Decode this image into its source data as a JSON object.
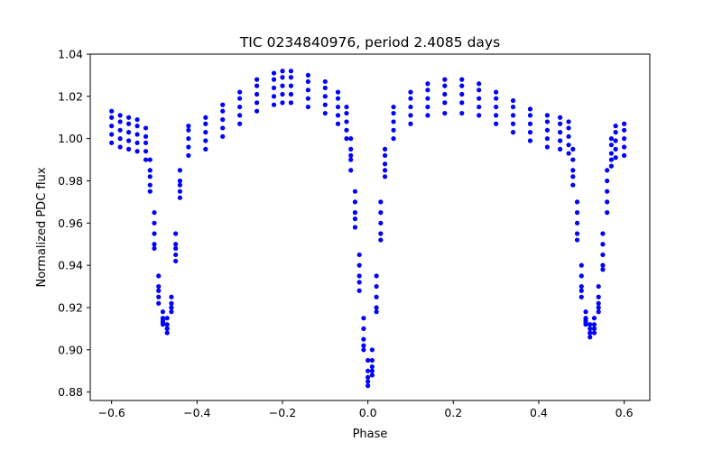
{
  "chart_data": {
    "type": "scatter",
    "title": "TIC 0234840976, period 2.4085 days",
    "xlabel": "Phase",
    "ylabel": "Normalized PDC flux",
    "xlim": [
      -0.65,
      0.66
    ],
    "ylim": [
      0.876,
      1.04
    ],
    "xticks": [
      -0.6,
      -0.4,
      -0.2,
      0.0,
      0.2,
      0.4,
      0.6
    ],
    "xtick_labels": [
      "−0.6",
      "−0.4",
      "−0.2",
      "0.0",
      "0.2",
      "0.4",
      "0.6"
    ],
    "yticks": [
      0.88,
      0.9,
      0.92,
      0.94,
      0.96,
      0.98,
      1.0,
      1.02,
      1.04
    ],
    "ytick_labels": [
      "0.88",
      "0.90",
      "0.92",
      "0.94",
      "0.96",
      "0.98",
      "1.00",
      "1.02",
      "1.04"
    ],
    "grid": false,
    "marker_color": "#0000ff",
    "series": [
      {
        "points": [
          [
            -0.6,
            1.013
          ],
          [
            -0.58,
            1.011
          ],
          [
            -0.56,
            1.01
          ],
          [
            -0.54,
            1.009
          ],
          [
            -0.52,
            1.005
          ],
          [
            -0.51,
            0.99
          ],
          [
            -0.5,
            0.965
          ],
          [
            -0.49,
            0.935
          ],
          [
            -0.48,
            0.918
          ],
          [
            -0.47,
            0.915
          ],
          [
            -0.46,
            0.925
          ],
          [
            -0.45,
            0.955
          ],
          [
            -0.44,
            0.985
          ],
          [
            -0.42,
            1.006
          ],
          [
            -0.38,
            1.01
          ],
          [
            -0.34,
            1.016
          ],
          [
            -0.3,
            1.022
          ],
          [
            -0.26,
            1.028
          ],
          [
            -0.22,
            1.031
          ],
          [
            -0.2,
            1.032
          ],
          [
            -0.18,
            1.032
          ],
          [
            -0.14,
            1.03
          ],
          [
            -0.1,
            1.027
          ],
          [
            -0.07,
            1.022
          ],
          [
            -0.05,
            1.015
          ],
          [
            -0.04,
            1.0
          ],
          [
            -0.03,
            0.975
          ],
          [
            -0.02,
            0.945
          ],
          [
            -0.01,
            0.915
          ],
          [
            0.0,
            0.895
          ],
          [
            0.01,
            0.9
          ],
          [
            0.02,
            0.935
          ],
          [
            0.03,
            0.97
          ],
          [
            0.04,
            0.995
          ],
          [
            0.06,
            1.015
          ],
          [
            0.1,
            1.022
          ],
          [
            0.14,
            1.026
          ],
          [
            0.18,
            1.028
          ],
          [
            0.22,
            1.028
          ],
          [
            0.26,
            1.026
          ],
          [
            0.3,
            1.022
          ],
          [
            0.34,
            1.018
          ],
          [
            0.38,
            1.014
          ],
          [
            0.42,
            1.011
          ],
          [
            0.45,
            1.01
          ],
          [
            0.47,
            1.008
          ],
          [
            0.48,
            0.995
          ],
          [
            0.49,
            0.97
          ],
          [
            0.5,
            0.94
          ],
          [
            0.51,
            0.918
          ],
          [
            0.52,
            0.912
          ],
          [
            0.53,
            0.915
          ],
          [
            0.54,
            0.93
          ],
          [
            0.55,
            0.955
          ],
          [
            0.56,
            0.985
          ],
          [
            0.57,
            1.0
          ],
          [
            0.58,
            1.006
          ],
          [
            0.6,
            1.007
          ]
        ]
      },
      {
        "points": [
          [
            -0.6,
            1.01
          ],
          [
            -0.58,
            1.008
          ],
          [
            -0.56,
            1.007
          ],
          [
            -0.54,
            1.006
          ],
          [
            -0.52,
            1.001
          ],
          [
            -0.51,
            0.985
          ],
          [
            -0.5,
            0.96
          ],
          [
            -0.49,
            0.93
          ],
          [
            -0.48,
            0.914
          ],
          [
            -0.47,
            0.91
          ],
          [
            -0.46,
            0.92
          ],
          [
            -0.45,
            0.95
          ],
          [
            -0.44,
            0.98
          ],
          [
            -0.42,
            1.004
          ],
          [
            -0.38,
            1.007
          ],
          [
            -0.34,
            1.013
          ],
          [
            -0.3,
            1.019
          ],
          [
            -0.26,
            1.025
          ],
          [
            -0.22,
            1.028
          ],
          [
            -0.2,
            1.029
          ],
          [
            -0.18,
            1.029
          ],
          [
            -0.14,
            1.027
          ],
          [
            -0.1,
            1.024
          ],
          [
            -0.07,
            1.019
          ],
          [
            -0.05,
            1.012
          ],
          [
            -0.04,
            0.995
          ],
          [
            -0.03,
            0.97
          ],
          [
            -0.02,
            0.94
          ],
          [
            -0.01,
            0.91
          ],
          [
            0.0,
            0.89
          ],
          [
            0.01,
            0.895
          ],
          [
            0.02,
            0.93
          ],
          [
            0.03,
            0.965
          ],
          [
            0.04,
            0.992
          ],
          [
            0.06,
            1.012
          ],
          [
            0.1,
            1.019
          ],
          [
            0.14,
            1.023
          ],
          [
            0.18,
            1.025
          ],
          [
            0.22,
            1.025
          ],
          [
            0.26,
            1.023
          ],
          [
            0.3,
            1.019
          ],
          [
            0.34,
            1.015
          ],
          [
            0.38,
            1.011
          ],
          [
            0.42,
            1.008
          ],
          [
            0.45,
            1.007
          ],
          [
            0.47,
            1.005
          ],
          [
            0.48,
            0.99
          ],
          [
            0.49,
            0.965
          ],
          [
            0.5,
            0.935
          ],
          [
            0.51,
            0.914
          ],
          [
            0.52,
            0.908
          ],
          [
            0.53,
            0.91
          ],
          [
            0.54,
            0.925
          ],
          [
            0.55,
            0.95
          ],
          [
            0.56,
            0.98
          ],
          [
            0.57,
            0.997
          ],
          [
            0.58,
            1.003
          ],
          [
            0.6,
            1.004
          ]
        ]
      },
      {
        "points": [
          [
            -0.6,
            1.006
          ],
          [
            -0.58,
            1.004
          ],
          [
            -0.56,
            1.003
          ],
          [
            -0.54,
            1.002
          ],
          [
            -0.52,
            0.998
          ],
          [
            -0.51,
            0.982
          ],
          [
            -0.5,
            0.955
          ],
          [
            -0.49,
            0.928
          ],
          [
            -0.48,
            0.912
          ],
          [
            -0.47,
            0.908
          ],
          [
            -0.46,
            0.918
          ],
          [
            -0.45,
            0.948
          ],
          [
            -0.44,
            0.978
          ],
          [
            -0.42,
            1.0
          ],
          [
            -0.38,
            1.003
          ],
          [
            -0.34,
            1.009
          ],
          [
            -0.3,
            1.015
          ],
          [
            -0.26,
            1.021
          ],
          [
            -0.22,
            1.024
          ],
          [
            -0.2,
            1.025
          ],
          [
            -0.18,
            1.025
          ],
          [
            -0.14,
            1.023
          ],
          [
            -0.1,
            1.02
          ],
          [
            -0.07,
            1.015
          ],
          [
            -0.05,
            1.008
          ],
          [
            -0.04,
            0.992
          ],
          [
            -0.03,
            0.965
          ],
          [
            -0.02,
            0.935
          ],
          [
            -0.01,
            0.905
          ],
          [
            0.0,
            0.887
          ],
          [
            0.01,
            0.892
          ],
          [
            0.02,
            0.925
          ],
          [
            0.03,
            0.96
          ],
          [
            0.04,
            0.988
          ],
          [
            0.06,
            1.008
          ],
          [
            0.1,
            1.015
          ],
          [
            0.14,
            1.019
          ],
          [
            0.18,
            1.021
          ],
          [
            0.22,
            1.021
          ],
          [
            0.26,
            1.019
          ],
          [
            0.3,
            1.015
          ],
          [
            0.34,
            1.011
          ],
          [
            0.38,
            1.007
          ],
          [
            0.42,
            1.004
          ],
          [
            0.45,
            1.003
          ],
          [
            0.47,
            1.001
          ],
          [
            0.48,
            0.985
          ],
          [
            0.49,
            0.96
          ],
          [
            0.5,
            0.93
          ],
          [
            0.51,
            0.912
          ],
          [
            0.52,
            0.906
          ],
          [
            0.53,
            0.908
          ],
          [
            0.54,
            0.922
          ],
          [
            0.55,
            0.945
          ],
          [
            0.56,
            0.975
          ],
          [
            0.57,
            0.993
          ],
          [
            0.58,
            0.999
          ],
          [
            0.6,
            1.0
          ]
        ]
      },
      {
        "points": [
          [
            -0.6,
            1.002
          ],
          [
            -0.58,
            1.0
          ],
          [
            -0.56,
            0.999
          ],
          [
            -0.54,
            0.998
          ],
          [
            -0.52,
            0.994
          ],
          [
            -0.51,
            0.978
          ],
          [
            -0.5,
            0.95
          ],
          [
            -0.49,
            0.925
          ],
          [
            -0.48,
            0.915
          ],
          [
            -0.47,
            0.912
          ],
          [
            -0.46,
            0.922
          ],
          [
            -0.45,
            0.945
          ],
          [
            -0.44,
            0.975
          ],
          [
            -0.42,
            0.996
          ],
          [
            -0.38,
            0.999
          ],
          [
            -0.34,
            1.005
          ],
          [
            -0.3,
            1.011
          ],
          [
            -0.26,
            1.017
          ],
          [
            -0.22,
            1.02
          ],
          [
            -0.2,
            1.021
          ],
          [
            -0.18,
            1.021
          ],
          [
            -0.14,
            1.019
          ],
          [
            -0.1,
            1.016
          ],
          [
            -0.07,
            1.011
          ],
          [
            -0.05,
            1.004
          ],
          [
            -0.04,
            0.99
          ],
          [
            -0.03,
            0.962
          ],
          [
            -0.02,
            0.932
          ],
          [
            -0.01,
            0.902
          ],
          [
            0.0,
            0.885
          ],
          [
            0.01,
            0.89
          ],
          [
            0.02,
            0.92
          ],
          [
            0.03,
            0.955
          ],
          [
            0.04,
            0.985
          ],
          [
            0.06,
            1.004
          ],
          [
            0.1,
            1.011
          ],
          [
            0.14,
            1.015
          ],
          [
            0.18,
            1.017
          ],
          [
            0.22,
            1.017
          ],
          [
            0.26,
            1.015
          ],
          [
            0.3,
            1.011
          ],
          [
            0.34,
            1.007
          ],
          [
            0.38,
            1.003
          ],
          [
            0.42,
            1.0
          ],
          [
            0.45,
            0.999
          ],
          [
            0.47,
            0.997
          ],
          [
            0.48,
            0.982
          ],
          [
            0.49,
            0.955
          ],
          [
            0.5,
            0.928
          ],
          [
            0.51,
            0.915
          ],
          [
            0.52,
            0.91
          ],
          [
            0.53,
            0.912
          ],
          [
            0.54,
            0.92
          ],
          [
            0.55,
            0.94
          ],
          [
            0.56,
            0.97
          ],
          [
            0.57,
            0.99
          ],
          [
            0.58,
            0.995
          ],
          [
            0.6,
            0.996
          ]
        ]
      },
      {
        "points": [
          [
            -0.6,
            0.998
          ],
          [
            -0.58,
            0.996
          ],
          [
            -0.56,
            0.995
          ],
          [
            -0.54,
            0.994
          ],
          [
            -0.52,
            0.99
          ],
          [
            -0.51,
            0.975
          ],
          [
            -0.5,
            0.948
          ],
          [
            -0.49,
            0.922
          ],
          [
            -0.48,
            0.913
          ],
          [
            -0.47,
            0.91
          ],
          [
            -0.46,
            0.92
          ],
          [
            -0.45,
            0.942
          ],
          [
            -0.44,
            0.972
          ],
          [
            -0.42,
            0.992
          ],
          [
            -0.38,
            0.995
          ],
          [
            -0.34,
            1.001
          ],
          [
            -0.3,
            1.007
          ],
          [
            -0.26,
            1.013
          ],
          [
            -0.22,
            1.016
          ],
          [
            -0.2,
            1.017
          ],
          [
            -0.18,
            1.017
          ],
          [
            -0.14,
            1.015
          ],
          [
            -0.1,
            1.012
          ],
          [
            -0.07,
            1.007
          ],
          [
            -0.05,
            1.0
          ],
          [
            -0.04,
            0.985
          ],
          [
            -0.03,
            0.958
          ],
          [
            -0.02,
            0.928
          ],
          [
            -0.01,
            0.9
          ],
          [
            0.0,
            0.883
          ],
          [
            0.01,
            0.888
          ],
          [
            0.02,
            0.918
          ],
          [
            0.03,
            0.952
          ],
          [
            0.04,
            0.982
          ],
          [
            0.06,
            1.0
          ],
          [
            0.1,
            1.007
          ],
          [
            0.14,
            1.011
          ],
          [
            0.18,
            1.012
          ],
          [
            0.22,
            1.012
          ],
          [
            0.26,
            1.011
          ],
          [
            0.3,
            1.007
          ],
          [
            0.34,
            1.003
          ],
          [
            0.38,
            0.999
          ],
          [
            0.42,
            0.996
          ],
          [
            0.45,
            0.995
          ],
          [
            0.47,
            0.993
          ],
          [
            0.48,
            0.978
          ],
          [
            0.49,
            0.952
          ],
          [
            0.5,
            0.925
          ],
          [
            0.51,
            0.913
          ],
          [
            0.52,
            0.908
          ],
          [
            0.53,
            0.91
          ],
          [
            0.54,
            0.918
          ],
          [
            0.55,
            0.938
          ],
          [
            0.56,
            0.965
          ],
          [
            0.57,
            0.987
          ],
          [
            0.58,
            0.991
          ],
          [
            0.6,
            0.992
          ]
        ]
      }
    ]
  }
}
